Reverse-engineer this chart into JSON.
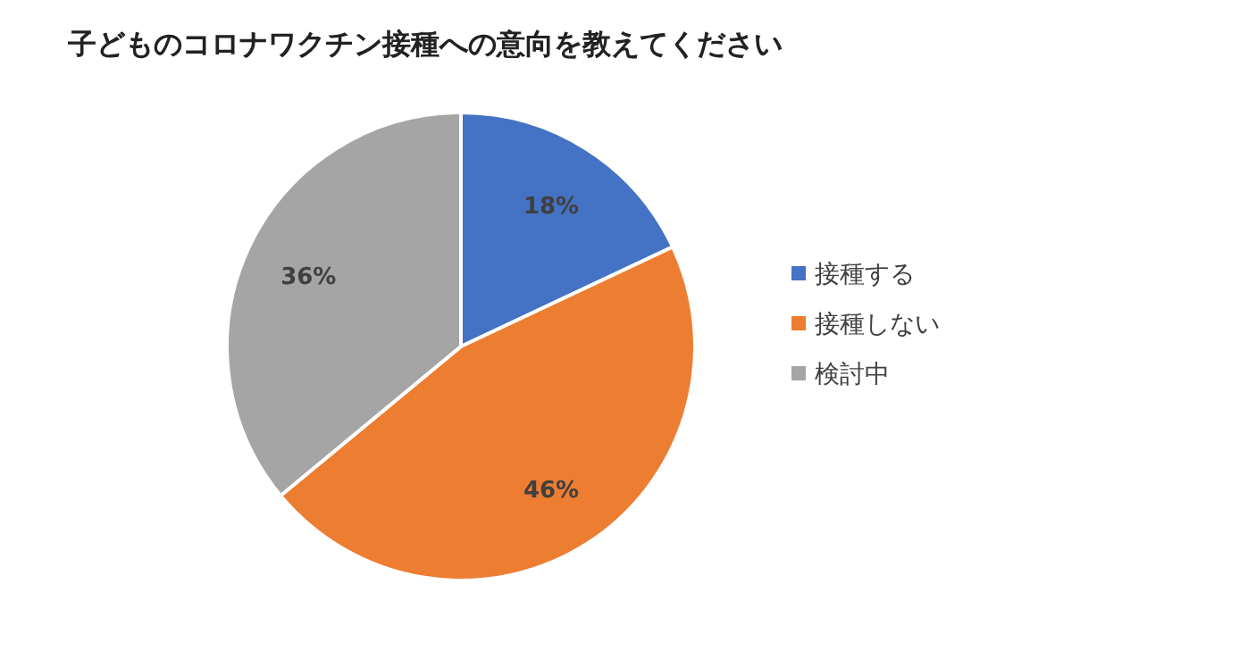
{
  "chart_data": {
    "type": "pie",
    "title": "子どものコロナワクチン接種への意向を教えてください",
    "categories": [
      "接種する",
      "接種しない",
      "検討中"
    ],
    "values": [
      18,
      46,
      36
    ],
    "colors": [
      "#4472c4",
      "#ed7d31",
      "#a5a5a5"
    ],
    "value_labels": [
      "18%",
      "46%",
      "36%"
    ],
    "legend": "right"
  }
}
